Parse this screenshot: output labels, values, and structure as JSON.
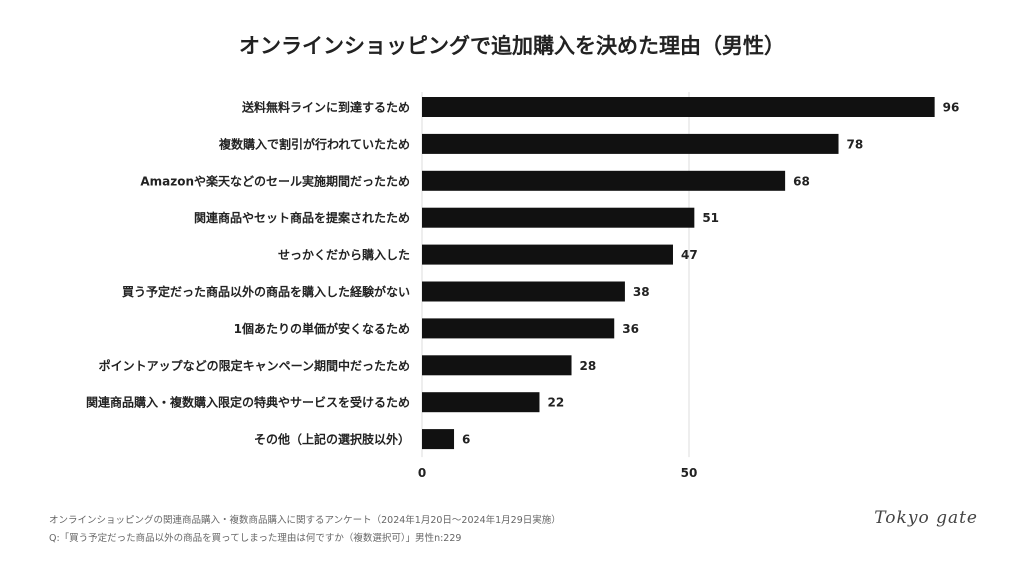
{
  "chart_data": {
    "type": "bar",
    "orientation": "horizontal",
    "title": "オンラインショッピングで追加購入を決めた理由（男性）",
    "categories": [
      "送料無料ラインに到達するため",
      "複数購入で割引が行われていたため",
      "Amazonや楽天などのセール実施期間だったため",
      "関連商品やセット商品を提案されたため",
      "せっかくだから購入した",
      "買う予定だった商品以外の商品を購入した経験がない",
      "1個あたりの単価が安くなるため",
      "ポイントアップなどの限定キャンペーン期間中だったため",
      "関連商品購入・複数購入限定の特典やサービスを受けるため",
      "その他（上記の選択肢以外）"
    ],
    "values": [
      96,
      78,
      68,
      51,
      47,
      38,
      36,
      28,
      22,
      6
    ],
    "xticks": [
      "0",
      "50"
    ],
    "xlim": [
      0,
      100
    ],
    "grid": true,
    "bar_color": "#111111"
  },
  "footer": {
    "source": "オンラインショッピングの関連商品購入・複数商品購入に関するアンケート（2024年1月20日〜2024年1月29日実施）",
    "question": "Q:「買う予定だった商品以外の商品を買ってしまった理由は何ですか（複数選択可）」男性n:229"
  },
  "logo": "Tokyo gate"
}
